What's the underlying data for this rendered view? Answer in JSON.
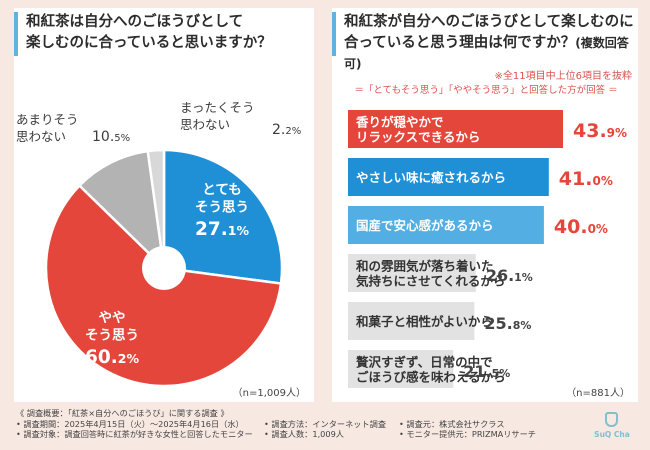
{
  "left": {
    "question_line1": "和紅茶は自分へのごほうびとして",
    "question_line2": "楽しむのに合っていると思いますか？",
    "n_label": "（n=1,009人）"
  },
  "right": {
    "question_line1": "和紅茶が自分へのごほうびとして楽しむのに",
    "question_line2": "合っていると思う理由は何ですか？",
    "question_sub": "(複数回答可)",
    "note_top": "※全11項目中上位6項目を抜粋",
    "note_mid": "＝「とてもそう思う」「ややそう思う」と回答した方が回答 ＝",
    "n_label": "（n=881人）"
  },
  "chart_data": [
    {
      "type": "pie",
      "title": "和紅茶は自分へのごほうびとして楽しむのに合っていると思いますか？",
      "slices": [
        {
          "label": "とても そう思う",
          "value": 27.1,
          "color": "#1f8fd6"
        },
        {
          "label": "やや そう思う",
          "value": 60.2,
          "color": "#e4463b"
        },
        {
          "label": "あまりそう 思わない",
          "value": 10.5,
          "color": "#b3b3b3"
        },
        {
          "label": "まったくそう 思わない",
          "value": 2.2,
          "color": "#d8d8d8"
        }
      ]
    },
    {
      "type": "bar",
      "orientation": "horizontal",
      "title": "和紅茶が自分へのごほうびとして楽しむのに合っていると思う理由は何ですか？(複数回答可)",
      "categories": [
        "香りが穏やかで リラックスできるから",
        "やさしい味に癒されるから",
        "国産で安心感があるから",
        "和の雰囲気が落ち着いた 気持ちにさせてくれるから",
        "和菓子と相性がよいから",
        "贅沢すぎず、日常の中で ごほうび感を味わえるから"
      ],
      "values": [
        43.9,
        41.0,
        40.0,
        26.1,
        25.8,
        21.5
      ],
      "colors": [
        "#e4463b",
        "#1f8fd6",
        "#52aee3",
        "#e2e2e2",
        "#e2e2e2",
        "#e2e2e2"
      ],
      "unit": "%"
    }
  ],
  "footer": {
    "line1": "《 調査概要：「紅茶×自分へのごほうび」に関する調査 》",
    "period": "• 調査期間：2025年4月15日（火）～2025年4月16日（水）",
    "method": "• 調査方法：インターネット調査",
    "org": "• 調査元：株式会社サクラス",
    "target": "• 調査対象：調査回答時に紅茶が好きな女性と回答したモニター",
    "count": "• 調査人数：1,009人",
    "monitor": "• モニター提供元：PRIZMAリサーチ"
  },
  "logo": {
    "text": "SuQ Cha"
  }
}
